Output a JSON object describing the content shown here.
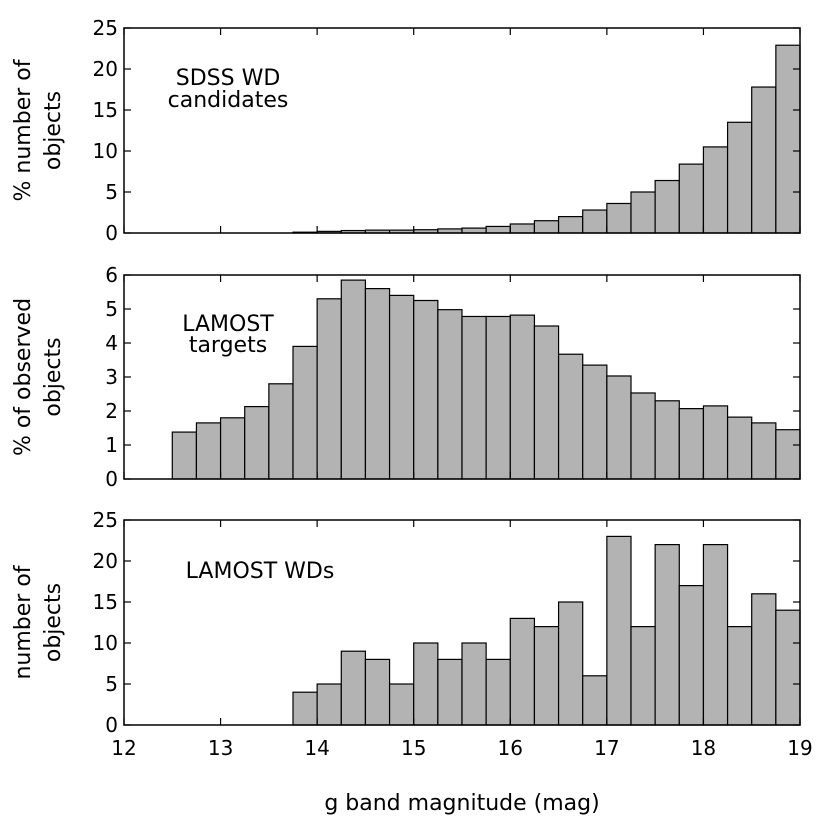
{
  "chart_data": {
    "type": "bar",
    "xlabel": "g band magnitude (mag)",
    "xlim": [
      12,
      19
    ],
    "xticks": [
      12,
      13,
      14,
      15,
      16,
      17,
      18,
      19
    ],
    "bin_width": 0.25,
    "panels": [
      {
        "id": "sdss",
        "title_lines": [
          "SDSS WD",
          "candidates"
        ],
        "ylabel_lines": [
          "% number of",
          "objects"
        ],
        "ylim": [
          0,
          25
        ],
        "yticks": [
          0,
          5,
          10,
          15,
          20,
          25
        ],
        "bin_starts": [
          13.75,
          14.0,
          14.25,
          14.5,
          14.75,
          15.0,
          15.25,
          15.5,
          15.75,
          16.0,
          16.25,
          16.5,
          16.75,
          17.0,
          17.25,
          17.5,
          17.75,
          18.0,
          18.25,
          18.5,
          18.75
        ],
        "values": [
          0.1,
          0.2,
          0.3,
          0.35,
          0.35,
          0.4,
          0.5,
          0.6,
          0.8,
          1.1,
          1.5,
          2.0,
          2.8,
          3.6,
          5.0,
          6.4,
          8.4,
          10.5,
          13.5,
          17.8,
          22.9
        ]
      },
      {
        "id": "lamost",
        "title_lines": [
          "LAMOST",
          "targets"
        ],
        "ylabel_lines": [
          "% of observed",
          "objects"
        ],
        "ylim": [
          0,
          6
        ],
        "yticks": [
          0,
          1,
          2,
          3,
          4,
          5,
          6
        ],
        "bin_starts": [
          12.5,
          12.75,
          13.0,
          13.25,
          13.5,
          13.75,
          14.0,
          14.25,
          14.5,
          14.75,
          15.0,
          15.25,
          15.5,
          15.75,
          16.0,
          16.25,
          16.5,
          16.75,
          17.0,
          17.25,
          17.5,
          17.75,
          18.0,
          18.25,
          18.5,
          18.75
        ],
        "values": [
          1.38,
          1.65,
          1.8,
          2.13,
          2.8,
          3.9,
          5.3,
          5.85,
          5.6,
          5.4,
          5.25,
          4.98,
          4.78,
          4.78,
          4.82,
          4.5,
          3.67,
          3.35,
          3.03,
          2.53,
          2.3,
          2.07,
          2.15,
          1.82,
          1.65,
          1.45
        ]
      },
      {
        "id": "wds",
        "title_lines": [
          "LAMOST WDs"
        ],
        "ylabel_lines": [
          "number of",
          "objects"
        ],
        "ylim": [
          0,
          25
        ],
        "yticks": [
          0,
          5,
          10,
          15,
          20,
          25
        ],
        "bin_starts": [
          13.75,
          14.0,
          14.25,
          14.5,
          14.75,
          15.0,
          15.25,
          15.5,
          15.75,
          16.0,
          16.25,
          16.5,
          16.75,
          17.0,
          17.25,
          17.5,
          17.75,
          18.0,
          18.25,
          18.5,
          18.75
        ],
        "values": [
          4,
          5,
          9,
          8,
          5,
          10,
          8,
          10,
          8,
          13,
          12,
          15,
          6,
          23,
          12,
          22,
          17,
          22,
          12,
          16,
          14
        ]
      }
    ]
  }
}
